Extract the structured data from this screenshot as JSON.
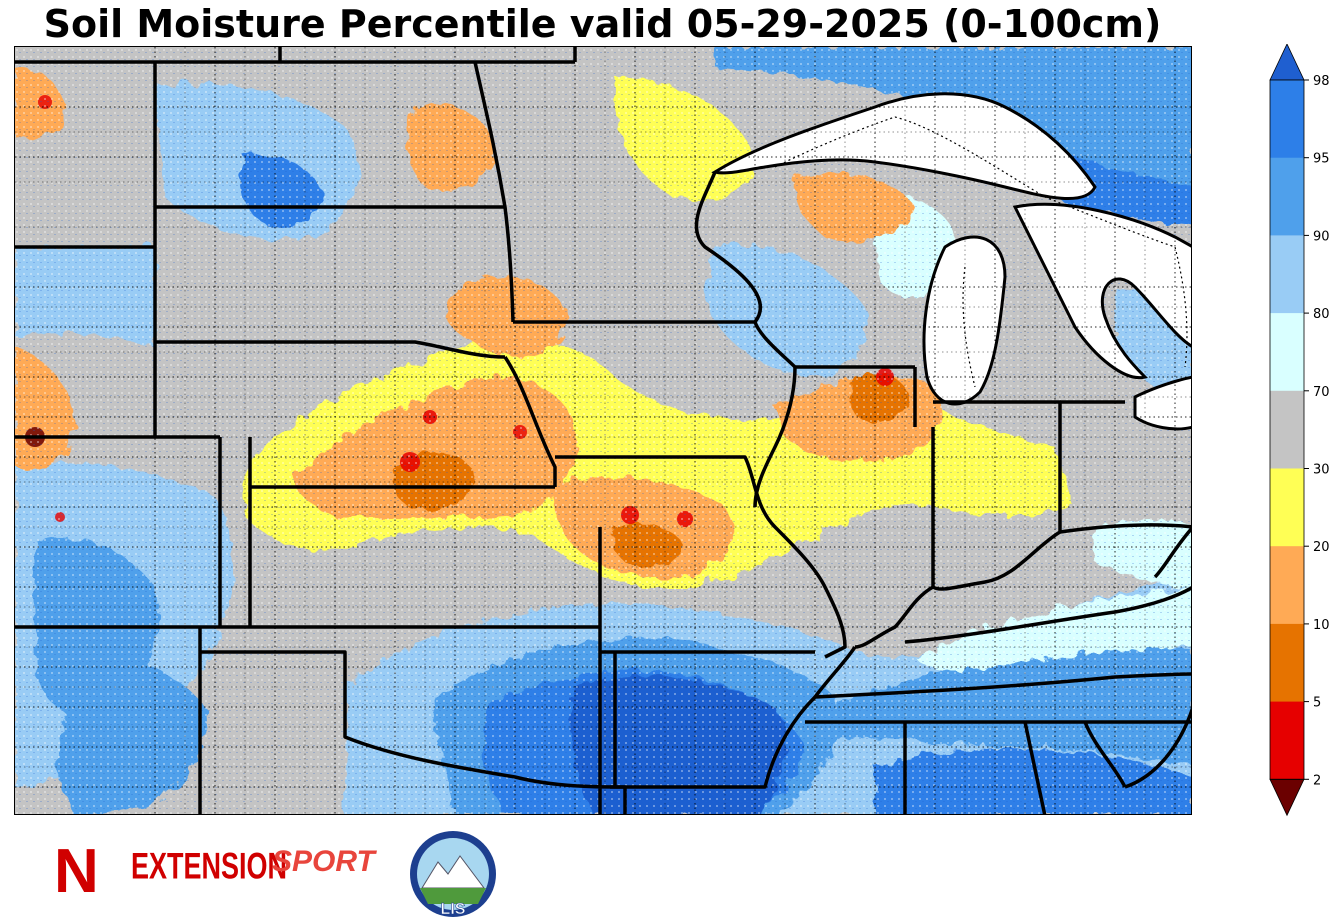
{
  "title": "Soil Moisture Percentile valid 05-29-2025 (0-100cm)",
  "colorbar": {
    "ticks": [
      "2",
      "5",
      "10",
      "20",
      "30",
      "70",
      "80",
      "90",
      "95",
      "98"
    ],
    "colors": {
      "below": "#6b0000",
      "2-5": "#e60000",
      "5-10": "#e67300",
      "10-20": "#ffaa55",
      "20-30": "#ffff55",
      "30-70": "#c4c4c4",
      "70-80": "#d9ffff",
      "80-90": "#99ccf5",
      "90-95": "#4fa0eb",
      "95-98": "#2d7fe8",
      "above": "#1f5fd0"
    }
  },
  "logos": {
    "extension": "EXTENSION",
    "sport": "SPORT",
    "lis": "LIS",
    "nebraska_n": "N"
  }
}
